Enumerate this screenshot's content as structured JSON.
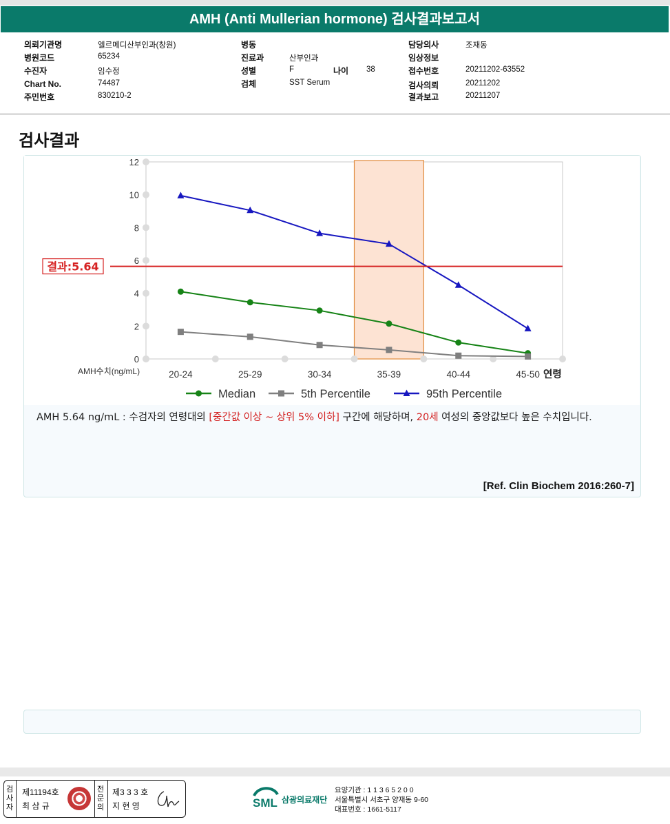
{
  "report": {
    "title": "AMH (Anti Mullerian hormone) 검사결과보고서",
    "section_title": "검사결과"
  },
  "info": {
    "institution_label": "의뢰기관명",
    "institution": "엘르메디산부인과(창원)",
    "hospital_code_label": "병원코드",
    "hospital_code": "65234",
    "patient_label": "수진자",
    "patient": "임수정",
    "chart_no_label": "Chart No.",
    "chart_no": "74487",
    "resident_no_label": "주민번호",
    "resident_no": "830210-2",
    "ward_label": "병동",
    "ward": "",
    "department_label": "진료과",
    "department": "산부인과",
    "sex_label": "성별",
    "sex": "F",
    "age_label": "나이",
    "age": "38",
    "specimen_label": "검체",
    "specimen": "SST Serum",
    "doctor_label": "담당의사",
    "doctor": "조재동",
    "clinical_label": "임상정보",
    "clinical": "",
    "receipt_label": "접수번호",
    "receipt": "20211202-63552",
    "request_label": "검사의뢰",
    "request": "20211202",
    "result_date_label": "결과보고",
    "result_date": "20211207"
  },
  "chart_data": {
    "type": "line",
    "categories": [
      "20-24",
      "25-29",
      "30-34",
      "35-39",
      "40-44",
      "45-50"
    ],
    "xlabel": "연령",
    "ylabel": "AMH수치(ng/mL)",
    "ylim": [
      0,
      12
    ],
    "yticks": [
      0,
      2,
      4,
      6,
      8,
      10,
      12
    ],
    "grid": true,
    "legend_position": "bottom",
    "series": [
      {
        "name": "Median",
        "color": "#168316",
        "marker": "circle",
        "values": [
          4.1,
          3.45,
          2.95,
          2.15,
          1.0,
          0.35
        ]
      },
      {
        "name": "5th Percentile",
        "color": "#7f7f7f",
        "marker": "square",
        "values": [
          1.65,
          1.35,
          0.85,
          0.55,
          0.2,
          0.15
        ]
      },
      {
        "name": "95th Percentile",
        "color": "#1717c0",
        "marker": "triangle",
        "values": [
          9.95,
          9.05,
          7.65,
          7.0,
          4.5,
          1.85
        ]
      }
    ],
    "reference_line": {
      "label": "결과:5.64",
      "value": 5.64,
      "color": "#d62222"
    },
    "highlight_category": "35-39"
  },
  "result": {
    "text_prefix": "AMH  5.64 ng/mL : 수검자의 연령대의 ",
    "text_range": "[중간값 이상 ~ 상위 5% 이하]",
    "text_mid": "  구간에 해당하며, ",
    "text_age": "20세",
    "text_suffix": " 여성의 중앙값보다 높은 수치입니다.",
    "reference": "[Ref. Clin Biochem 2016:260-7]"
  },
  "footer": {
    "examiner_vertical": [
      "검",
      "사",
      "자"
    ],
    "examiner_no": "제11194호",
    "examiner_name": "최 삼 규",
    "reviewer_vertical": [
      "전",
      "문",
      "의"
    ],
    "reviewer_no": "제3 3 3 호",
    "reviewer_name": "지 현 영",
    "org_name": "삼광의료재단",
    "org_code": "요양기관 : 1 1 3 6 5 2 0 0",
    "org_address": "서울특별시 서초구 양재동 9-60",
    "org_phone": "대표번호 : 1661-5117"
  }
}
